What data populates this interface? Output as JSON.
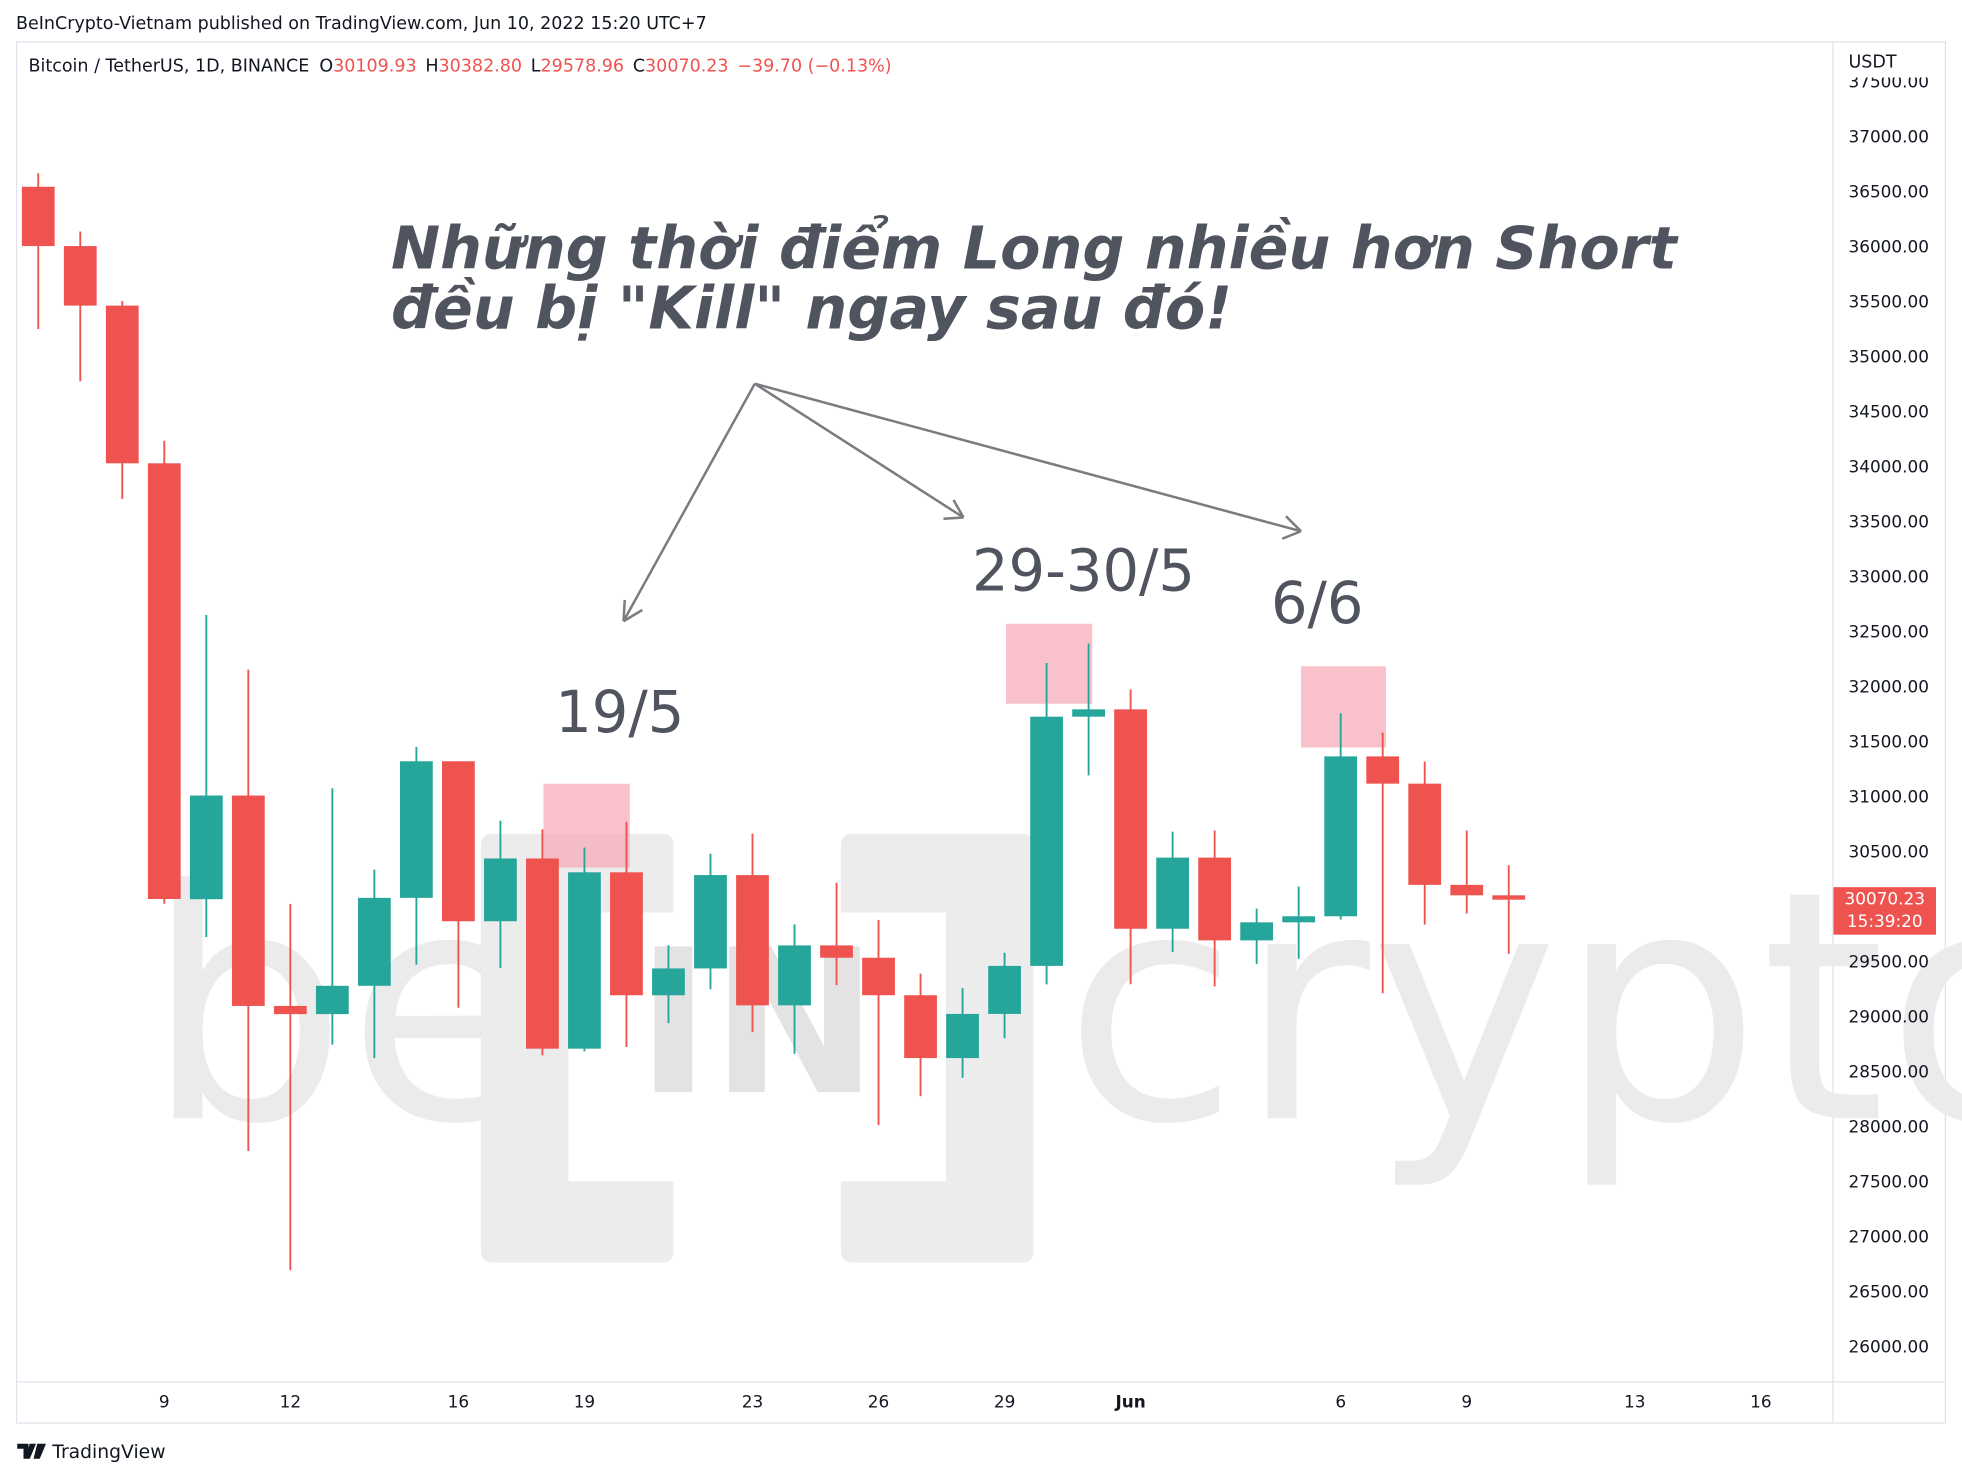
{
  "header": {
    "text": "BeInCrypto-Vietnam published on TradingView.com, Jun 10, 2022 15:20 UTC+7"
  },
  "footer": {
    "brand": "TradingView"
  },
  "watermark": {
    "left": "be",
    "middle": "IN",
    "right": "crypto"
  },
  "chart_data": {
    "type": "candlestick",
    "legend": {
      "symbol": "Bitcoin / TetherUS, 1D, BINANCE",
      "items": [
        {
          "key": "O",
          "value": "30109.93"
        },
        {
          "key": "H",
          "value": "30382.80"
        },
        {
          "key": "L",
          "value": "29578.96"
        },
        {
          "key": "C",
          "value": "30070.23"
        }
      ],
      "change": "−39.70 (−0.13%)"
    },
    "y_axis_label": "USDT",
    "last_price": {
      "value": "30070.23",
      "countdown": "15:39:20"
    },
    "annotations": {
      "title_line1": "Những thời điểm Long nhiều hơn Short",
      "title_line2": "đều bị \"Kill\" ngay sau đó!",
      "labels": [
        "19/5",
        "29-30/5",
        "6/6"
      ]
    },
    "up_color": "#26a69a",
    "down_color": "#ef5350",
    "grid": false,
    "x": [
      0,
      1,
      2,
      3,
      4,
      5,
      6,
      7,
      8,
      9,
      10,
      11,
      12,
      13,
      14,
      15,
      16,
      17,
      18,
      19,
      20,
      21,
      22,
      23,
      24,
      25,
      26,
      27,
      28,
      29,
      30,
      31,
      32,
      33,
      34,
      35
    ],
    "open": [
      36552.97,
      36013.77,
      35472.4,
      34038.39,
      30074.23,
      31017.11,
      29103.94,
      29029.74,
      29287.05,
      30086.74,
      31328.89,
      29874.01,
      30444.93,
      28715.33,
      30319.22,
      29201.01,
      29445.07,
      30293.93,
      29109.14,
      29654.58,
      29542.14,
      29201.35,
      28629.81,
      29031.33,
      29468.1,
      31734.23,
      31801.05,
      29805.84,
      30452.63,
      29700.21,
      29864.03,
      29919.2,
      31373.1,
      31125.32,
      30204.77,
      30109.93
    ],
    "high": [
      36675.63,
      36146.3,
      35514.22,
      34243.15,
      32658.99,
      32162.59,
      30032.44,
      31083.37,
      30343.27,
      31460.0,
      31328.9,
      30788.37,
      30709.99,
      30545.18,
      30777.33,
      29656.18,
      30487.99,
      30670.51,
      29845.86,
      30223.74,
      29886.64,
      29397.66,
      29266.0,
      29587.78,
      32222.0,
      32399.0,
      31982.97,
      30689.0,
      30699.0,
      29988.88,
      30189.0,
      31765.64,
      31589.6,
      31327.22,
      30700.0,
      30382.8
    ],
    "low": [
      35258.0,
      34785.0,
      33713.95,
      30033.33,
      29730.4,
      27785.0,
      26700.0,
      28751.67,
      28630.0,
      29480.0,
      29087.04,
      29450.38,
      28654.47,
      28691.38,
      28730.0,
      28947.28,
      29255.11,
      28866.35,
      28669.0,
      29294.21,
      28019.56,
      28282.9,
      28450.0,
      28810.0,
      29299.62,
      31200.01,
      29301.0,
      29594.55,
      29282.36,
      29485.0,
      29531.42,
      29890.23,
      29218.96,
      29843.88,
      29944.1,
      29578.96
    ],
    "close": [
      36013.77,
      35472.39,
      34038.4,
      30076.31,
      31017.1,
      29103.94,
      29029.75,
      29287.05,
      30086.74,
      31328.89,
      29874.01,
      30444.93,
      28715.32,
      30319.23,
      29201.01,
      29445.06,
      30293.94,
      29109.15,
      29654.58,
      29542.15,
      29201.35,
      28629.8,
      29031.33,
      29468.1,
      31734.22,
      31801.04,
      29805.83,
      30452.62,
      29700.21,
      29864.04,
      29919.21,
      31373.1,
      31125.33,
      30204.77,
      30109.93,
      30070.23
    ],
    "xlim": [
      -0.5,
      42.7
    ],
    "xticks": [
      {
        "value": 3,
        "label": "9"
      },
      {
        "value": 6,
        "label": "12"
      },
      {
        "value": 10,
        "label": "16"
      },
      {
        "value": 13,
        "label": "19"
      },
      {
        "value": 17,
        "label": "23"
      },
      {
        "value": 20,
        "label": "26"
      },
      {
        "value": 23,
        "label": "29"
      },
      {
        "value": 26,
        "label": "Jun"
      },
      {
        "value": 31,
        "label": "6"
      },
      {
        "value": 34,
        "label": "9"
      },
      {
        "value": 38,
        "label": "13"
      },
      {
        "value": 41,
        "label": "16"
      }
    ],
    "ylim": [
      25691,
      37865
    ],
    "yticks": [
      {
        "value": 26000,
        "label": "26000.00"
      },
      {
        "value": 26500,
        "label": "26500.00"
      },
      {
        "value": 27000,
        "label": "27000.00"
      },
      {
        "value": 27500,
        "label": "27500.00"
      },
      {
        "value": 28000,
        "label": "28000.00"
      },
      {
        "value": 28500,
        "label": "28500.00"
      },
      {
        "value": 29000,
        "label": "29000.00"
      },
      {
        "value": 29500,
        "label": "29500.00"
      },
      {
        "value": 30000,
        "label": "30000.00"
      },
      {
        "value": 30500,
        "label": "30500.00"
      },
      {
        "value": 31000,
        "label": "31000.00"
      },
      {
        "value": 31500,
        "label": "31500.00"
      },
      {
        "value": 32000,
        "label": "32000.00"
      },
      {
        "value": 32500,
        "label": "32500.00"
      },
      {
        "value": 33000,
        "label": "33000.00"
      },
      {
        "value": 33500,
        "label": "33500.00"
      },
      {
        "value": 34000,
        "label": "34000.00"
      },
      {
        "value": 34500,
        "label": "34500.00"
      },
      {
        "value": 35000,
        "label": "35000.00"
      },
      {
        "value": 35500,
        "label": "35500.00"
      },
      {
        "value": 36000,
        "label": "36000.00"
      },
      {
        "value": 36500,
        "label": "36500.00"
      },
      {
        "value": 37000,
        "label": "37000.00"
      },
      {
        "value": 37500,
        "label": "37500.00"
      }
    ]
  }
}
